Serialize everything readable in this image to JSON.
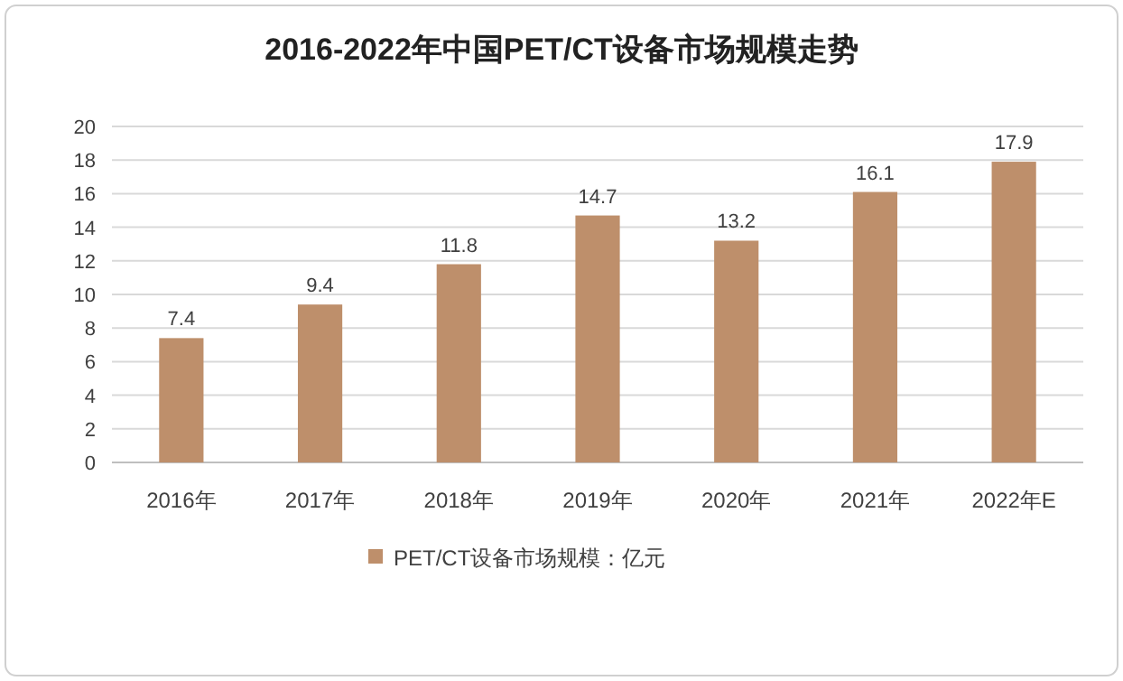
{
  "chart_data": {
    "type": "bar",
    "title": "2016-2022年中国PET/CT设备市场规模走势",
    "categories": [
      "2016年",
      "2017年",
      "2018年",
      "2019年",
      "2020年",
      "2021年",
      "2022年E"
    ],
    "series": [
      {
        "name": "PET/CT设备市场规模：亿元",
        "color": "#be8f6b",
        "values": [
          7.4,
          9.4,
          11.8,
          14.7,
          13.2,
          16.1,
          17.9
        ]
      }
    ],
    "ylim": [
      0,
      20
    ],
    "yticks": [
      0,
      2,
      4,
      6,
      8,
      10,
      12,
      14,
      16,
      18,
      20
    ],
    "grid": "y",
    "legend": "bottom",
    "data_labels": true
  }
}
